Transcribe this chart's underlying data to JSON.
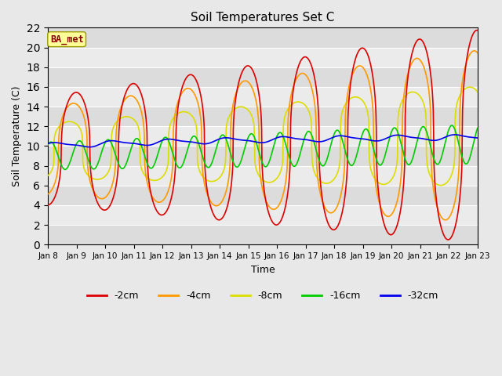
{
  "title": "Soil Temperatures Set C",
  "xlabel": "Time",
  "ylabel": "Soil Temperature (C)",
  "ylim": [
    0,
    22
  ],
  "yticks": [
    0,
    2,
    4,
    6,
    8,
    10,
    12,
    14,
    16,
    18,
    20,
    22
  ],
  "x_labels": [
    "Jan 8",
    "Jan 9",
    "Jan 10",
    "Jan 11",
    "Jan 12",
    "Jan 13",
    "Jan 14",
    "Jan 15",
    "Jan 16",
    "Jan 17",
    "Jan 18",
    "Jan 19",
    "Jan 20",
    "Jan 21",
    "Jan 22",
    "Jan 23"
  ],
  "colors": {
    "-2cm": "#dd0000",
    "-4cm": "#ff9900",
    "-8cm": "#dddd00",
    "-16cm": "#00cc00",
    "-32cm": "#0000ee"
  },
  "legend_label": "BA_met",
  "background_color": "#e8e8e8",
  "band_colors": [
    "#dcdcdc",
    "#ebebeb"
  ],
  "n_points": 1440,
  "days": 15,
  "figsize": [
    6.4,
    4.8
  ],
  "dpi": 100
}
